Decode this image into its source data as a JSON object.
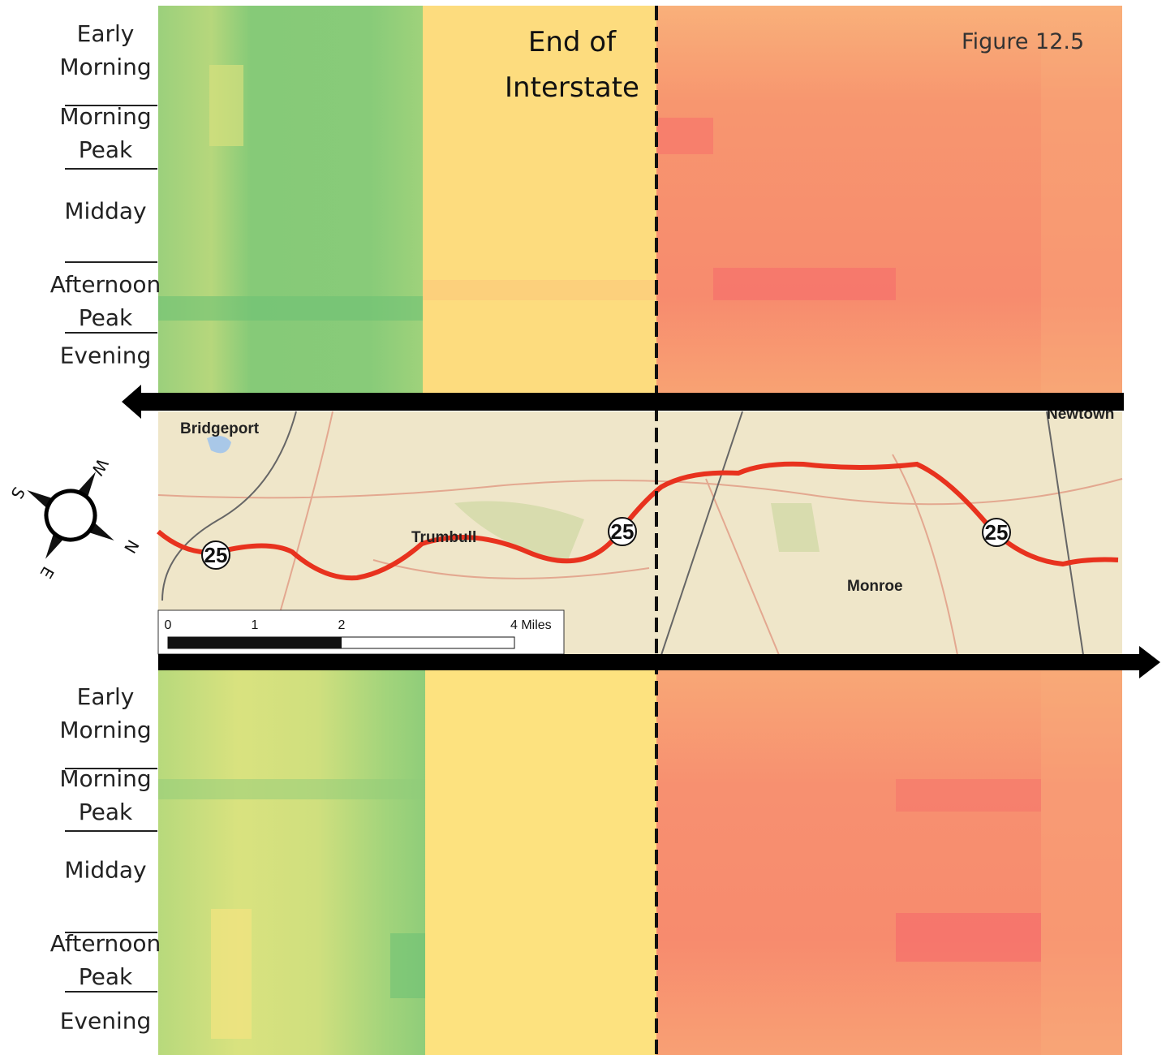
{
  "figure_label": "Figure 12.5",
  "annotation": "End of Interstate",
  "top_panel": {
    "periods": [
      "Early Morning",
      "Morning Peak",
      "Midday",
      "Afternoon Peak",
      "Evening"
    ]
  },
  "bottom_panel": {
    "periods": [
      "Early Morning",
      "Morning Peak",
      "Midday",
      "Afternoon Peak",
      "Evening"
    ]
  },
  "map": {
    "places": [
      "Bridgeport",
      "Trumbull",
      "Monroe",
      "Newtown"
    ],
    "route_shields": [
      "25",
      "25",
      "25"
    ],
    "scale": {
      "ticks": [
        "0",
        "1",
        "2"
      ],
      "end_label": "4 Miles"
    },
    "compass": [
      "S",
      "W",
      "N",
      "E"
    ]
  }
}
